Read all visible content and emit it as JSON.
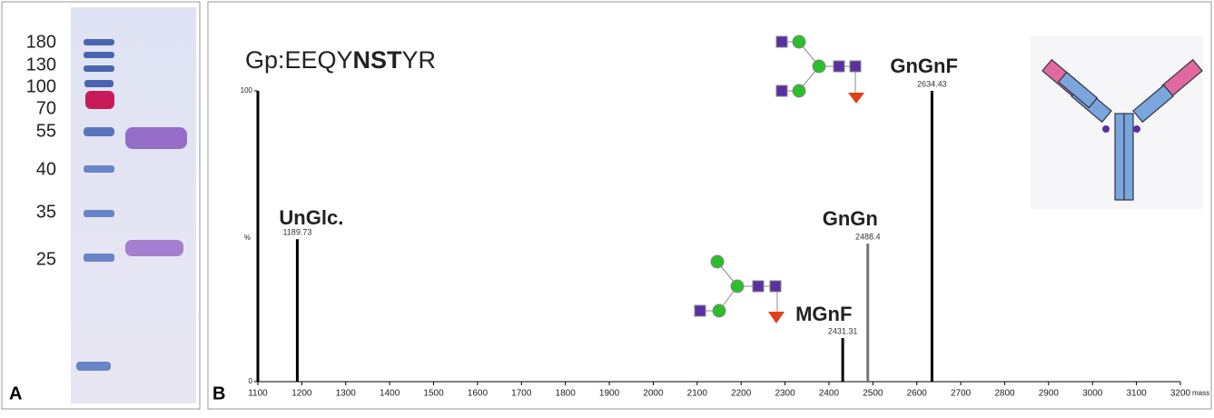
{
  "panel_a": {
    "label": "A",
    "markers": [
      180,
      130,
      100,
      70,
      55,
      40,
      35,
      25
    ]
  },
  "chart_data": {
    "type": "spectrum",
    "panel_label": "B",
    "title_parts": [
      "Gp:EEQY",
      "NST",
      "YR"
    ],
    "x_label": "mass",
    "y_label": "%",
    "x": [
      1189.73,
      2431.31,
      2488.4,
      2634.43
    ],
    "values": [
      49,
      15,
      47.5,
      100
    ],
    "colors": [
      "#000000",
      "#000000",
      "#777777",
      "#000000"
    ],
    "peak_names": [
      "UnGlc.",
      "MGnF",
      "GnGn",
      "GnGnF"
    ],
    "xlim": [
      1100,
      3200
    ],
    "xticks": [
      1100,
      1200,
      1300,
      1400,
      1500,
      1600,
      1700,
      1800,
      1900,
      2000,
      2100,
      2200,
      2300,
      2400,
      2500,
      2600,
      2700,
      2800,
      2900,
      3000,
      3100,
      3200
    ],
    "ylim": [
      0,
      100
    ],
    "yticks": [
      0,
      100
    ]
  }
}
